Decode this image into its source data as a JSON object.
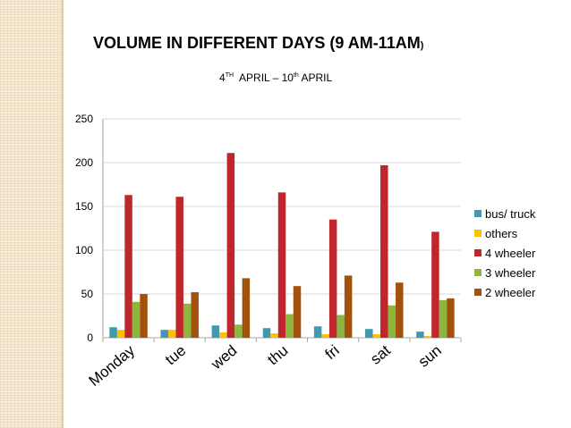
{
  "chart_data": {
    "type": "bar",
    "title": "VOLUME IN DIFFERENT DAYS (9 AM-11AM",
    "title_close": ")",
    "subtitle": {
      "part1": "4",
      "sup1": "TH",
      "part2": "  APRIL – 10",
      "sup2": "th",
      "part3": " APRIL"
    },
    "categories": [
      "Monday",
      "tue",
      "wed",
      "thu",
      "fri",
      "sat",
      "sun"
    ],
    "ylim": [
      0,
      250
    ],
    "yticks": [
      0,
      50,
      100,
      150,
      200,
      250
    ],
    "grid": true,
    "legend_position": "right",
    "series": [
      {
        "name": "bus/ truck",
        "color": "#4198af",
        "values": [
          12,
          9,
          14,
          11,
          13,
          10,
          7
        ]
      },
      {
        "name": "others",
        "color": "#ffc000",
        "values": [
          9,
          9,
          6,
          5,
          4,
          4,
          2
        ]
      },
      {
        "name": "4 wheeler",
        "color": "#c0272d",
        "values": [
          163,
          161,
          211,
          166,
          135,
          197,
          121
        ]
      },
      {
        "name": "3 wheeler",
        "color": "#8db63f",
        "values": [
          41,
          39,
          15,
          27,
          26,
          37,
          43
        ]
      },
      {
        "name": "2 wheeler",
        "color": "#a3520e",
        "values": [
          50,
          52,
          68,
          59,
          71,
          63,
          45
        ]
      }
    ]
  }
}
